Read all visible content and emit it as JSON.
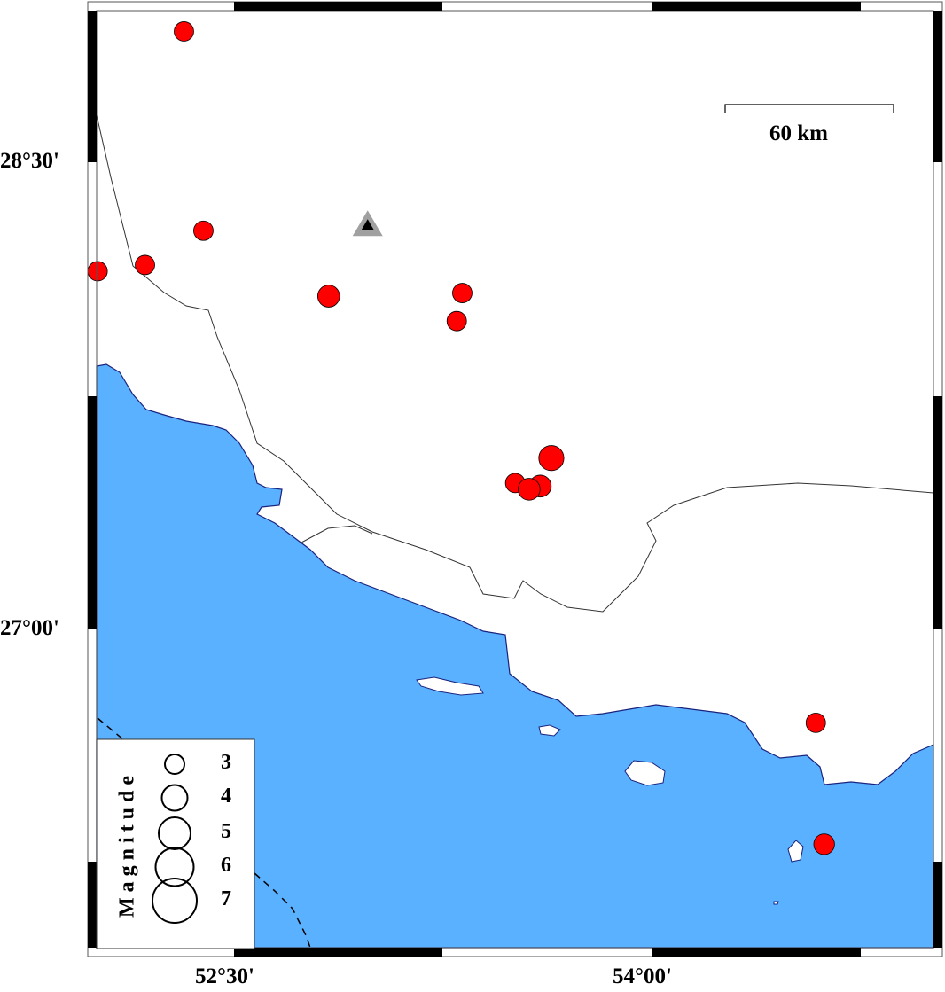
{
  "map": {
    "colors": {
      "sea": "#5AB1FF",
      "land": "#ffffff",
      "event": "#ff0000",
      "station": "#000000",
      "station_halo": "#a0a0a0",
      "coastline": "#1a237e"
    },
    "extent": {
      "lon": [
        52.0,
        55.0
      ],
      "lat": [
        26.0,
        29.0
      ]
    },
    "x_ticks": [
      {
        "value": 52.5,
        "label": "52°30'"
      },
      {
        "value": 54.0,
        "label": "54°00'"
      }
    ],
    "y_ticks": [
      {
        "value": 28.5,
        "label": "28°30'"
      },
      {
        "value": 27.0,
        "label": "27°00'"
      }
    ],
    "scale_bar": {
      "label": "60 km",
      "length_km": 60
    },
    "station": {
      "lon": 52.98,
      "lat": 28.3,
      "icon": "triangle-icon"
    },
    "events": [
      {
        "lon": 52.32,
        "lat": 28.92,
        "mag": 3.0
      },
      {
        "lon": 52.39,
        "lat": 28.28,
        "mag": 3.0
      },
      {
        "lon": 52.01,
        "lat": 28.15,
        "mag": 3.0
      },
      {
        "lon": 52.18,
        "lat": 28.17,
        "mag": 3.0
      },
      {
        "lon": 52.84,
        "lat": 28.07,
        "mag": 3.4
      },
      {
        "lon": 53.32,
        "lat": 28.08,
        "mag": 3.0
      },
      {
        "lon": 53.3,
        "lat": 27.99,
        "mag": 3.0
      },
      {
        "lon": 53.64,
        "lat": 27.55,
        "mag": 3.9
      },
      {
        "lon": 53.51,
        "lat": 27.47,
        "mag": 3.0
      },
      {
        "lon": 53.6,
        "lat": 27.46,
        "mag": 3.4
      },
      {
        "lon": 53.56,
        "lat": 27.45,
        "mag": 3.4
      },
      {
        "lon": 54.59,
        "lat": 26.7,
        "mag": 3.0
      },
      {
        "lon": 54.62,
        "lat": 26.31,
        "mag": 3.2
      }
    ],
    "legend": {
      "title": "Magnitude",
      "items": [
        {
          "mag": 3,
          "label": "3"
        },
        {
          "mag": 4,
          "label": "4"
        },
        {
          "mag": 5,
          "label": "5"
        },
        {
          "mag": 6,
          "label": "6"
        },
        {
          "mag": 7,
          "label": "7"
        }
      ]
    }
  }
}
